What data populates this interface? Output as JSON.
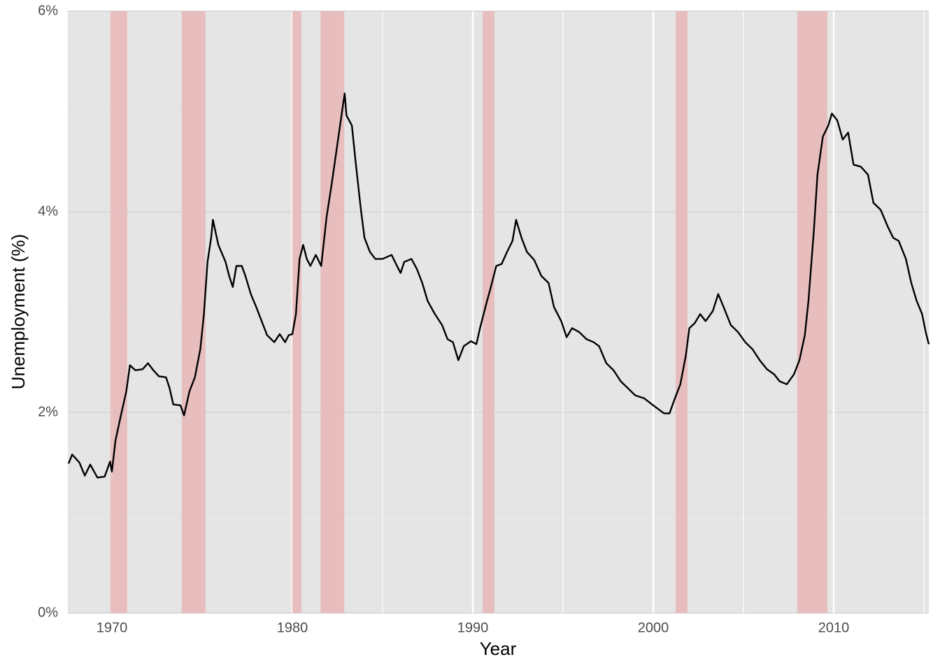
{
  "chart_data": {
    "type": "line",
    "x_label": "Year",
    "y_label": "Unemployment (%)",
    "xlim": [
      1967.56,
      2015.27
    ],
    "ylim": [
      0,
      6
    ],
    "xticks": [
      1970,
      1980,
      1990,
      2000,
      2010
    ],
    "x_minor_ticks": [
      1975,
      1985,
      1995,
      2005,
      2015
    ],
    "yticks": [
      {
        "value": 0,
        "label": "0%"
      },
      {
        "value": 2,
        "label": "2%"
      },
      {
        "value": 4,
        "label": "4%"
      },
      {
        "value": 6,
        "label": "6%"
      }
    ],
    "y_minor_ticks": [
      1,
      3,
      5
    ],
    "grid": true,
    "background": "#e5e5e5",
    "shade_color": "#e9b6b7",
    "shaded_regions": [
      [
        1969.92,
        1970.85
      ],
      [
        1973.87,
        1975.19
      ],
      [
        1980.0,
        1980.5
      ],
      [
        1981.56,
        1982.88
      ],
      [
        1990.54,
        1991.2
      ],
      [
        2001.24,
        2001.9
      ],
      [
        2007.98,
        2009.65
      ]
    ],
    "series": [
      {
        "name": "Unemployment",
        "color": "#000000",
        "x": [
          1967.6,
          1967.8,
          1968.2,
          1968.5,
          1968.8,
          1969.2,
          1969.6,
          1969.9,
          1970.0,
          1970.2,
          1970.5,
          1970.8,
          1971.0,
          1971.3,
          1971.7,
          1972.0,
          1972.3,
          1972.6,
          1973.0,
          1973.2,
          1973.4,
          1973.8,
          1974.0,
          1974.3,
          1974.6,
          1974.9,
          1975.1,
          1975.3,
          1975.5,
          1975.6,
          1975.9,
          1976.3,
          1976.5,
          1976.7,
          1976.9,
          1977.2,
          1977.4,
          1977.7,
          1978.0,
          1978.3,
          1978.6,
          1979.0,
          1979.3,
          1979.6,
          1979.8,
          1980.0,
          1980.2,
          1980.4,
          1980.6,
          1980.8,
          1981.0,
          1981.3,
          1981.6,
          1981.9,
          1982.2,
          1982.5,
          1982.7,
          1982.9,
          1983.0,
          1983.3,
          1983.5,
          1983.8,
          1984.0,
          1984.3,
          1984.6,
          1985.0,
          1985.5,
          1985.8,
          1986.0,
          1986.2,
          1986.6,
          1986.9,
          1987.2,
          1987.5,
          1987.9,
          1988.3,
          1988.6,
          1988.9,
          1989.2,
          1989.5,
          1989.9,
          1990.2,
          1990.4,
          1990.7,
          1991.0,
          1991.3,
          1991.6,
          1991.9,
          1992.2,
          1992.4,
          1992.7,
          1993.0,
          1993.4,
          1993.8,
          1994.2,
          1994.5,
          1994.9,
          1995.2,
          1995.5,
          1995.9,
          1996.3,
          1996.7,
          1997.0,
          1997.4,
          1997.8,
          1998.2,
          1998.6,
          1999.0,
          1999.5,
          2000.0,
          2000.3,
          2000.6,
          2000.9,
          2001.2,
          2001.5,
          2001.8,
          2002.0,
          2002.3,
          2002.6,
          2002.9,
          2003.3,
          2003.6,
          2003.9,
          2004.3,
          2004.7,
          2005.1,
          2005.5,
          2005.9,
          2006.3,
          2006.7,
          2007.0,
          2007.4,
          2007.8,
          2008.1,
          2008.4,
          2008.6,
          2008.9,
          2009.1,
          2009.4,
          2009.7,
          2009.9,
          2010.2,
          2010.5,
          2010.8,
          2011.1,
          2011.5,
          2011.9,
          2012.2,
          2012.6,
          2013.0,
          2013.3,
          2013.6,
          2014.0,
          2014.3,
          2014.6,
          2014.9,
          2015.1,
          2015.27
        ],
        "values": [
          1.49,
          1.58,
          1.5,
          1.37,
          1.48,
          1.35,
          1.36,
          1.51,
          1.41,
          1.72,
          1.97,
          2.21,
          2.47,
          2.42,
          2.43,
          2.49,
          2.42,
          2.36,
          2.35,
          2.24,
          2.08,
          2.07,
          1.97,
          2.21,
          2.35,
          2.63,
          2.98,
          3.5,
          3.74,
          3.92,
          3.67,
          3.5,
          3.36,
          3.25,
          3.46,
          3.46,
          3.36,
          3.18,
          3.05,
          2.91,
          2.77,
          2.7,
          2.78,
          2.7,
          2.77,
          2.78,
          2.98,
          3.53,
          3.67,
          3.53,
          3.46,
          3.57,
          3.46,
          3.95,
          4.3,
          4.68,
          4.93,
          5.18,
          4.96,
          4.86,
          4.51,
          4.02,
          3.74,
          3.6,
          3.53,
          3.53,
          3.57,
          3.46,
          3.39,
          3.5,
          3.53,
          3.43,
          3.29,
          3.11,
          2.98,
          2.87,
          2.73,
          2.7,
          2.52,
          2.66,
          2.71,
          2.68,
          2.84,
          3.05,
          3.25,
          3.46,
          3.48,
          3.6,
          3.71,
          3.92,
          3.74,
          3.6,
          3.52,
          3.36,
          3.29,
          3.05,
          2.91,
          2.75,
          2.84,
          2.8,
          2.73,
          2.7,
          2.66,
          2.49,
          2.42,
          2.31,
          2.24,
          2.17,
          2.14,
          2.07,
          2.03,
          1.99,
          1.99,
          2.14,
          2.28,
          2.56,
          2.84,
          2.89,
          2.98,
          2.91,
          3.01,
          3.18,
          3.05,
          2.87,
          2.8,
          2.7,
          2.63,
          2.52,
          2.43,
          2.38,
          2.31,
          2.28,
          2.38,
          2.52,
          2.77,
          3.11,
          3.81,
          4.37,
          4.75,
          4.86,
          4.98,
          4.91,
          4.72,
          4.79,
          4.47,
          4.45,
          4.37,
          4.09,
          4.02,
          3.85,
          3.74,
          3.71,
          3.53,
          3.29,
          3.11,
          2.98,
          2.8,
          2.68
        ]
      }
    ]
  }
}
